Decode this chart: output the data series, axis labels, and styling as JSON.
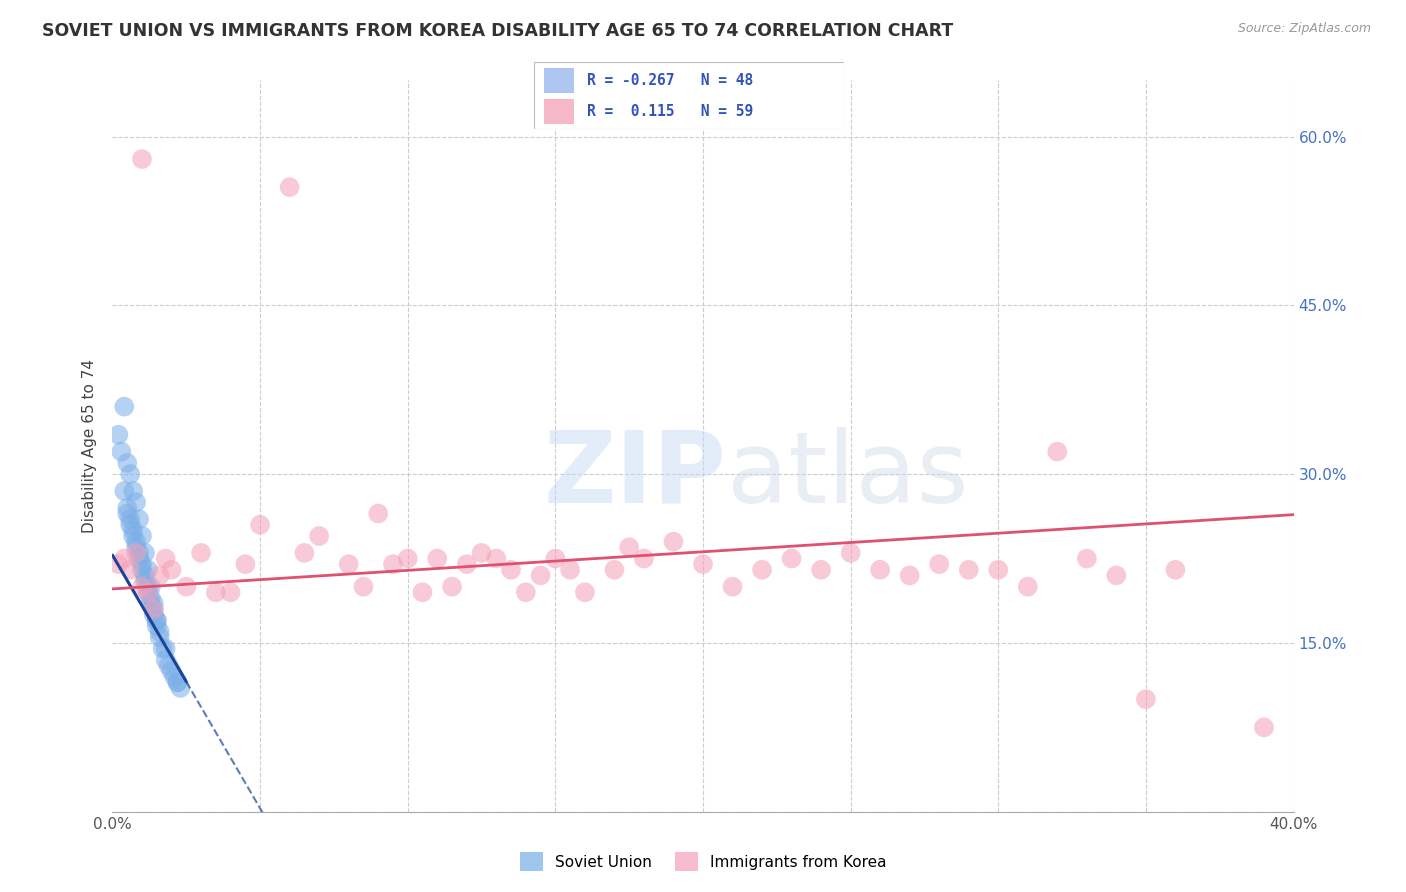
{
  "title": "SOVIET UNION VS IMMIGRANTS FROM KOREA DISABILITY AGE 65 TO 74 CORRELATION CHART",
  "source": "Source: ZipAtlas.com",
  "ylabel": "Disability Age 65 to 74",
  "x_min": 0.0,
  "x_max": 0.4,
  "y_min": 0.0,
  "y_max": 0.65,
  "x_ticks": [
    0.0,
    0.05,
    0.1,
    0.15,
    0.2,
    0.25,
    0.3,
    0.35,
    0.4
  ],
  "y_ticks": [
    0.0,
    0.15,
    0.3,
    0.45,
    0.6
  ],
  "soviet_color": "#7aaee8",
  "korea_color": "#f4a0b8",
  "soviet_line_color": "#1a4499",
  "korea_line_color": "#e05070",
  "soviet_x": [
    0.002,
    0.003,
    0.004,
    0.005,
    0.005,
    0.006,
    0.006,
    0.007,
    0.007,
    0.008,
    0.008,
    0.009,
    0.009,
    0.01,
    0.01,
    0.011,
    0.011,
    0.012,
    0.012,
    0.013,
    0.013,
    0.014,
    0.014,
    0.015,
    0.015,
    0.016,
    0.016,
    0.017,
    0.018,
    0.019,
    0.02,
    0.021,
    0.022,
    0.023,
    0.004,
    0.005,
    0.006,
    0.007,
    0.008,
    0.009,
    0.01,
    0.011,
    0.012,
    0.013,
    0.014,
    0.015,
    0.018,
    0.022
  ],
  "soviet_y": [
    0.335,
    0.32,
    0.285,
    0.27,
    0.265,
    0.26,
    0.255,
    0.25,
    0.245,
    0.24,
    0.235,
    0.23,
    0.225,
    0.22,
    0.215,
    0.21,
    0.205,
    0.2,
    0.195,
    0.19,
    0.185,
    0.18,
    0.175,
    0.17,
    0.165,
    0.16,
    0.155,
    0.145,
    0.135,
    0.13,
    0.125,
    0.12,
    0.115,
    0.11,
    0.36,
    0.31,
    0.3,
    0.285,
    0.275,
    0.26,
    0.245,
    0.23,
    0.215,
    0.2,
    0.185,
    0.17,
    0.145,
    0.115
  ],
  "korea_x": [
    0.002,
    0.004,
    0.006,
    0.008,
    0.01,
    0.012,
    0.014,
    0.016,
    0.018,
    0.02,
    0.025,
    0.03,
    0.035,
    0.04,
    0.045,
    0.05,
    0.06,
    0.065,
    0.07,
    0.08,
    0.085,
    0.09,
    0.095,
    0.1,
    0.105,
    0.11,
    0.115,
    0.12,
    0.125,
    0.13,
    0.135,
    0.14,
    0.145,
    0.15,
    0.155,
    0.16,
    0.17,
    0.175,
    0.18,
    0.19,
    0.2,
    0.21,
    0.22,
    0.23,
    0.24,
    0.25,
    0.26,
    0.27,
    0.28,
    0.29,
    0.3,
    0.31,
    0.32,
    0.33,
    0.34,
    0.35,
    0.36,
    0.39,
    0.01
  ],
  "korea_y": [
    0.22,
    0.225,
    0.215,
    0.23,
    0.2,
    0.195,
    0.18,
    0.21,
    0.225,
    0.215,
    0.2,
    0.23,
    0.195,
    0.195,
    0.22,
    0.255,
    0.555,
    0.23,
    0.245,
    0.22,
    0.2,
    0.265,
    0.22,
    0.225,
    0.195,
    0.225,
    0.2,
    0.22,
    0.23,
    0.225,
    0.215,
    0.195,
    0.21,
    0.225,
    0.215,
    0.195,
    0.215,
    0.235,
    0.225,
    0.24,
    0.22,
    0.2,
    0.215,
    0.225,
    0.215,
    0.23,
    0.215,
    0.21,
    0.22,
    0.215,
    0.215,
    0.2,
    0.32,
    0.225,
    0.21,
    0.1,
    0.215,
    0.075,
    0.58
  ],
  "R_soviet": -0.267,
  "N_soviet": 48,
  "R_korea": 0.115,
  "N_korea": 59,
  "soviet_intercept": 0.228,
  "soviet_slope": -4.5,
  "korea_intercept": 0.198,
  "korea_slope": 0.165
}
